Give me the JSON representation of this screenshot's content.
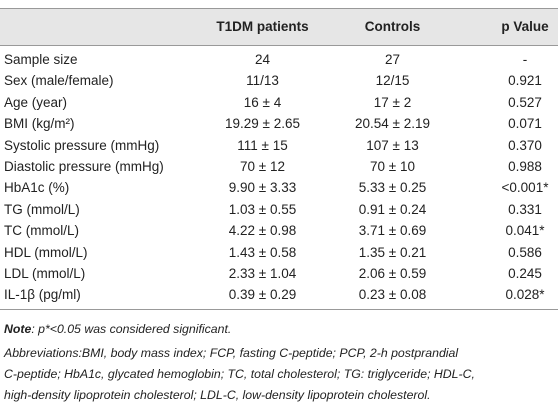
{
  "table": {
    "header": [
      "T1DM patients",
      "Controls",
      "p Value"
    ],
    "rows": [
      [
        "Sample size",
        "24",
        "27",
        "-"
      ],
      [
        "Sex (male/female)",
        "11/13",
        "12/15",
        "0.921"
      ],
      [
        "Age (year)",
        "16 ± 4",
        "17 ± 2",
        "0.527"
      ],
      [
        "BMI (kg/m²)",
        "19.29 ± 2.65",
        "20.54 ± 2.19",
        "0.071"
      ],
      [
        "Systolic pressure (mmHg)",
        "111 ± 15",
        "107 ± 13",
        "0.370"
      ],
      [
        "Diastolic pressure (mmHg)",
        "70 ± 12",
        "70 ± 10",
        "0.988"
      ],
      [
        "HbA1c (%)",
        "9.90 ± 3.33",
        "5.33 ± 0.25",
        "<0.001*"
      ],
      [
        "TG (mmol/L)",
        "1.03 ± 0.55",
        "0.91 ± 0.24",
        "0.331"
      ],
      [
        "TC (mmol/L)",
        "4.22 ± 0.98",
        "3.71 ± 0.69",
        "0.041*"
      ],
      [
        "HDL (mmol/L)",
        "1.43 ± 0.58",
        "1.35 ± 0.21",
        "0.586"
      ],
      [
        "LDL (mmol/L)",
        "2.33 ± 1.04",
        "2.06 ± 0.59",
        "0.245"
      ],
      [
        "IL-1β (pg/ml)",
        "0.39 ± 0.29",
        "0.23 ± 0.08",
        "0.028*"
      ]
    ]
  },
  "footnote": {
    "note_label": "Note",
    "note_text": ": p*<0.05 was considered significant.",
    "abbreviations": [
      "Abbreviations:BMI, body mass index; FCP, fasting C-peptide; PCP, 2-h postprandial",
      "C-peptide; HbA1c, glycated hemoglobin; TC, total cholesterol; TG: triglyceride; HDL-C,",
      "high-density lipoprotein cholesterol; LDL-C, low-density lipoprotein cholesterol."
    ]
  }
}
